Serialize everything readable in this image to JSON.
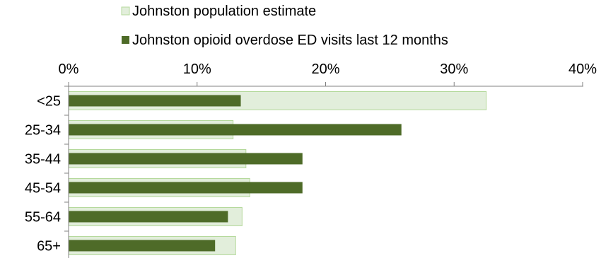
{
  "chart_data": {
    "type": "bar",
    "orientation": "horizontal",
    "categories": [
      "<25",
      "25-34",
      "35-44",
      "45-54",
      "55-64",
      "65+"
    ],
    "series": [
      {
        "name": "Johnston population estimate",
        "color": "#e2eedb",
        "border": "#b5d99c",
        "values": [
          32.5,
          12.8,
          13.8,
          14.1,
          13.5,
          13.0
        ]
      },
      {
        "name": "Johnston opioid overdose ED visits last 12 months",
        "color": "#4e6b28",
        "values": [
          13.4,
          25.9,
          18.2,
          18.2,
          12.4,
          11.4
        ]
      }
    ],
    "xlim": [
      0,
      40
    ],
    "xticks": [
      0,
      10,
      20,
      30,
      40
    ],
    "xtick_labels": [
      "0%",
      "10%",
      "20%",
      "30%",
      "40%"
    ],
    "x_axis_position": "top",
    "legend_position": "top",
    "grid": false,
    "bars_overlapped": true
  }
}
